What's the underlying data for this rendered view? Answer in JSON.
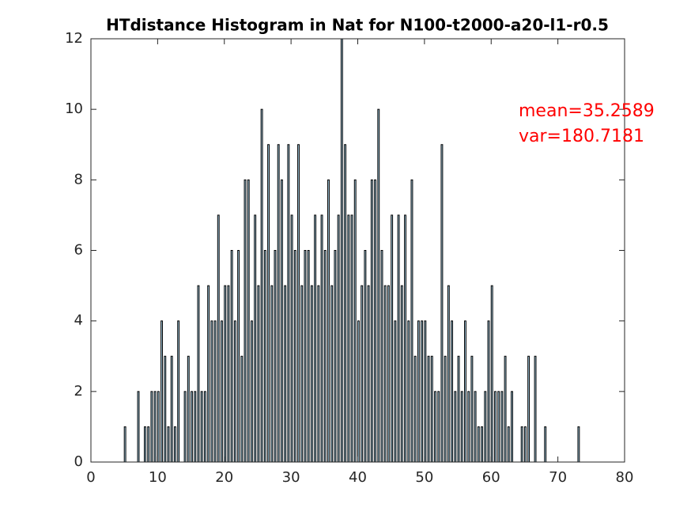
{
  "chart_data": {
    "type": "histogram",
    "title": "HTdistance Histogram in Nat for N100-t2000-a20-l1-r0.5",
    "annotations": [
      "mean=35.2589",
      "var=180.7181"
    ],
    "annotation_color": "#ff0000",
    "color": "#a6cee3",
    "edge_color": "#000000",
    "bins": [
      5,
      5.5,
      6,
      6.5,
      7,
      7.5,
      8,
      8.5,
      9,
      9.5,
      10,
      10.5,
      11,
      11.5,
      12,
      12.5,
      13,
      13.5,
      14,
      14.5,
      15,
      15.5,
      16,
      16.5,
      17,
      17.5,
      18,
      18.5,
      19,
      19.5,
      20,
      20.5,
      21,
      21.5,
      22,
      22.5,
      23,
      23.5,
      24,
      24.5,
      25,
      25.5,
      26,
      26.5,
      27,
      27.5,
      28,
      28.5,
      29,
      29.5,
      30,
      30.5,
      31,
      31.5,
      32,
      32.5,
      33,
      33.5,
      34,
      34.5,
      35,
      35.5,
      36,
      36.5,
      37,
      37.5,
      38,
      38.5,
      39,
      39.5,
      40,
      40.5,
      41,
      41.5,
      42,
      42.5,
      43,
      43.5,
      44,
      44.5,
      45,
      45.5,
      46,
      46.5,
      47,
      47.5,
      48,
      48.5,
      49,
      49.5,
      50,
      50.5,
      51,
      51.5,
      52,
      52.5,
      53,
      53.5,
      54,
      54.5,
      55,
      55.5,
      56,
      56.5,
      57,
      57.5,
      58,
      58.5,
      59,
      59.5,
      60,
      60.5,
      61,
      61.5,
      62,
      62.5,
      63,
      63.5,
      64,
      64.5,
      65,
      65.5,
      66,
      66.5,
      67,
      67.5,
      68,
      68.5,
      69,
      69.5,
      70,
      70.5,
      71,
      71.5,
      72,
      72.5,
      73,
      73.5
    ],
    "values": [
      1,
      0,
      0,
      0,
      2,
      0,
      1,
      1,
      2,
      2,
      2,
      4,
      3,
      1,
      3,
      1,
      4,
      0,
      2,
      3,
      2,
      2,
      5,
      2,
      2,
      5,
      4,
      4,
      7,
      4,
      5,
      5,
      6,
      4,
      6,
      3,
      8,
      8,
      4,
      7,
      5,
      10,
      6,
      9,
      5,
      6,
      9,
      8,
      5,
      9,
      7,
      6,
      9,
      5,
      6,
      6,
      5,
      7,
      5,
      7,
      6,
      8,
      5,
      6,
      7,
      12,
      9,
      7,
      7,
      8,
      4,
      5,
      6,
      5,
      8,
      8,
      10,
      6,
      5,
      5,
      7,
      4,
      7,
      5,
      7,
      4,
      8,
      3,
      4,
      4,
      4,
      3,
      3,
      2,
      2,
      9,
      3,
      5,
      4,
      2,
      3,
      2,
      4,
      2,
      3,
      2,
      1,
      1,
      2,
      4,
      5,
      2,
      2,
      2,
      3,
      1,
      2,
      0,
      0,
      1,
      1,
      3,
      0,
      3,
      0,
      0,
      1,
      0,
      0,
      0,
      0,
      0,
      0,
      0,
      0,
      0,
      1
    ],
    "xlim": [
      0,
      80
    ],
    "xticks": [
      0,
      10,
      20,
      30,
      40,
      50,
      60,
      70,
      80
    ],
    "ylim": [
      0,
      12
    ],
    "yticks": [
      0,
      2,
      4,
      6,
      8,
      10,
      12
    ]
  }
}
